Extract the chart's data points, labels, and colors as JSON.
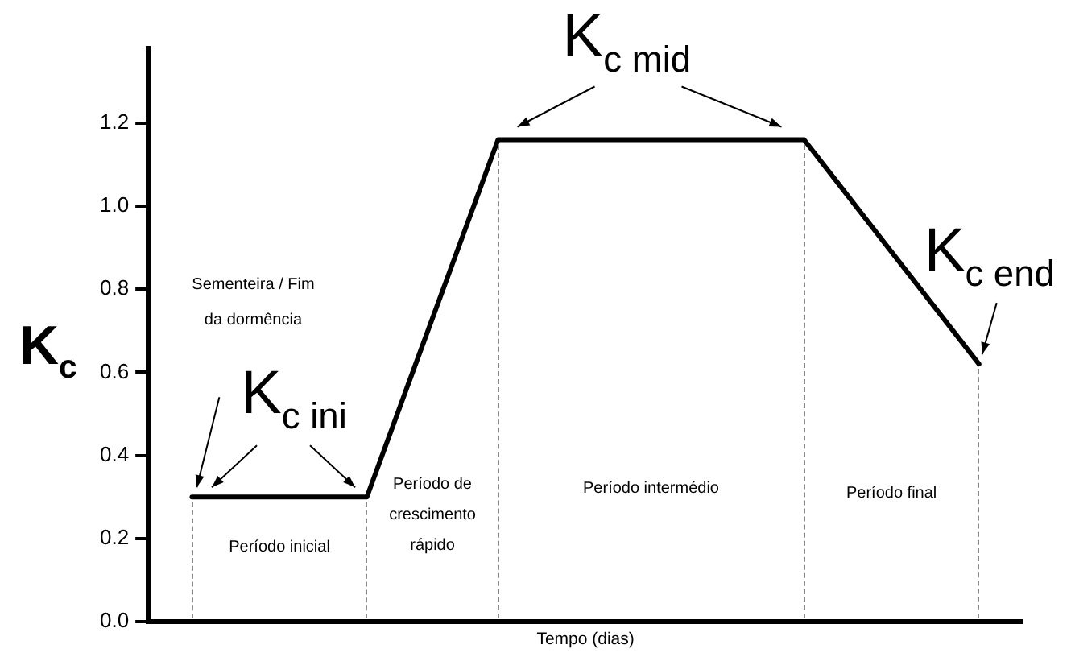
{
  "chart_data": {
    "type": "line",
    "xlabel": "Tempo (dias)",
    "ylabel": "K$_{c}$",
    "categories": [
      null,
      null,
      null,
      null,
      null,
      null,
      null,
      null,
      null,
      null,
      null,
      null,
      null,
      null,
      null,
      null,
      null,
      null,
      null,
      null,
      null
    ],
    "series": [
      {
        "color": "#000000",
        "values": [
          null,
          0.3,
          0.3,
          0.3,
          0.3,
          0.3,
          0.587,
          0.873,
          1.16,
          1.16,
          1.16,
          1.16,
          1.16,
          1.16,
          1.16,
          1.16,
          1.025,
          0.89,
          0.755,
          0.62,
          null
        ]
      }
    ],
    "ylim": [
      0,
      1.38
    ],
    "yticks": [
      {
        "value": 0,
        "label": "0.0"
      },
      {
        "value": 0.2,
        "label": "0.2"
      },
      {
        "value": 0.4,
        "label": "0.4"
      },
      {
        "value": 0.6,
        "label": "0.6"
      },
      {
        "value": 0.8,
        "label": "0.8"
      },
      {
        "value": 1,
        "label": "1.0"
      },
      {
        "value": 1.2,
        "label": "1.2"
      }
    ],
    "tick_labels": "y",
    "grid": false,
    "legend": false,
    "marker": "none",
    "line_style": "solid",
    "annotations": [
      "Sementeira / Fim da dormência",
      "K$_{c ini}$",
      "K$_{c mid}$",
      "K$_{c end}$",
      "Período inicial",
      "Período de crescimento rápido",
      "Período intermédio",
      "Período final"
    ]
  }
}
